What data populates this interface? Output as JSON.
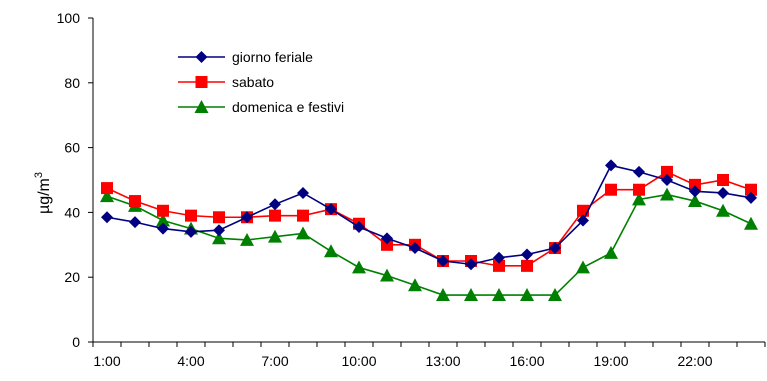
{
  "chart_data": {
    "type": "line",
    "title": "",
    "xlabel": "",
    "ylabel": "µg/m",
    "ylabel_sup": "3",
    "x": [
      "1:00",
      "2:00",
      "3:00",
      "4:00",
      "5:00",
      "6:00",
      "7:00",
      "8:00",
      "9:00",
      "10:00",
      "11:00",
      "12:00",
      "13:00",
      "14:00",
      "15:00",
      "16:00",
      "17:00",
      "18:00",
      "19:00",
      "20:00",
      "21:00",
      "22:00",
      "23:00",
      "24:00"
    ],
    "xticklabels": [
      "1:00",
      "4:00",
      "7:00",
      "10:00",
      "13:00",
      "16:00",
      "19:00",
      "22:00"
    ],
    "ylim": [
      0,
      100
    ],
    "yticks": [
      0,
      20,
      40,
      60,
      80,
      100
    ],
    "grid": false,
    "legend_position": "top-left",
    "series": [
      {
        "name": "giorno feriale",
        "color": "#000080",
        "marker": "diamond",
        "values": [
          38.5,
          37,
          35,
          34,
          34.5,
          38.5,
          42.5,
          46,
          41,
          35.5,
          32,
          29,
          25,
          24,
          26,
          27,
          29,
          37.5,
          54.5,
          52.5,
          50,
          46.5,
          46,
          44.5
        ]
      },
      {
        "name": "sabato",
        "color": "#ff0000",
        "marker": "square",
        "values": [
          47.5,
          43.5,
          40.5,
          39,
          38.5,
          38.5,
          39,
          39,
          41,
          36.5,
          30,
          30,
          25,
          25,
          23.5,
          23.5,
          29,
          40.5,
          47,
          47,
          52.5,
          48.5,
          50,
          47
        ]
      },
      {
        "name": "domenica e festivi",
        "color": "#008000",
        "marker": "triangle",
        "values": [
          45,
          42,
          37.5,
          35,
          32,
          31.5,
          32.5,
          33.5,
          28,
          23,
          20.5,
          17.5,
          14.5,
          14.5,
          14.5,
          14.5,
          14.5,
          23,
          27.5,
          44,
          45.5,
          43.5,
          40.5,
          36.5
        ]
      }
    ]
  }
}
